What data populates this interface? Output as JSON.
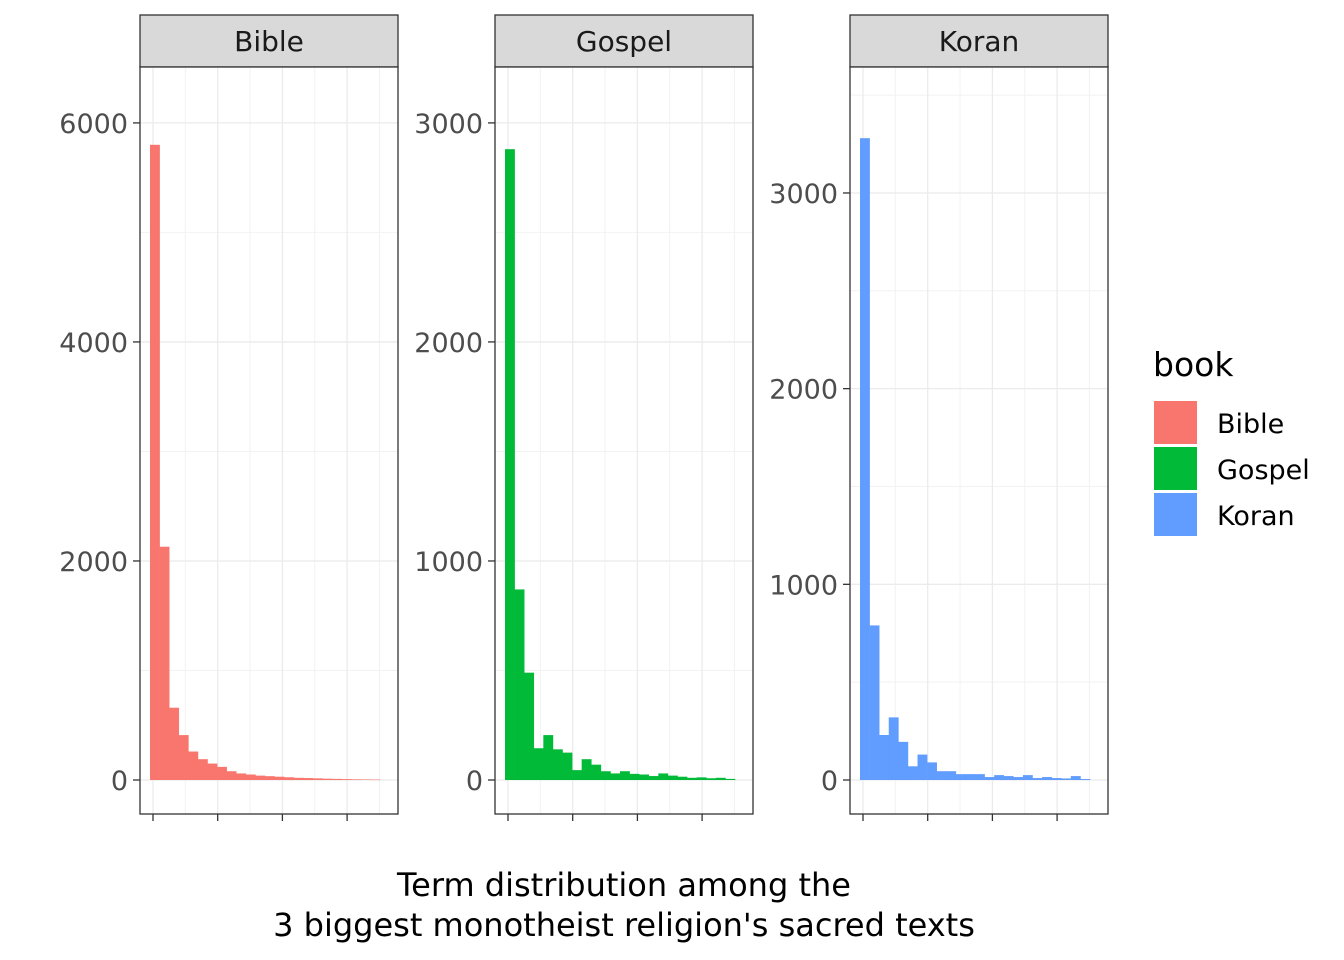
{
  "chart_data": {
    "type": "bar",
    "subtype": "faceted-histogram",
    "facets": [
      {
        "name": "Bible",
        "color": "#F8766D",
        "ylim": [
          0,
          6200
        ],
        "yticks": [
          0,
          2000,
          4000,
          6000
        ],
        "tick_labels": [
          "0",
          "2000",
          "4000",
          "6000"
        ],
        "values": [
          5800,
          2130,
          660,
          410,
          260,
          190,
          150,
          120,
          80,
          60,
          50,
          40,
          35,
          30,
          25,
          20,
          18,
          15,
          12,
          10,
          8,
          6,
          5,
          4
        ]
      },
      {
        "name": "Gospel",
        "color": "#00BA38",
        "ylim": [
          0,
          3100
        ],
        "yticks": [
          0,
          1000,
          2000,
          3000
        ],
        "tick_labels": [
          "0",
          "1000",
          "2000",
          "3000"
        ],
        "values": [
          2880,
          870,
          490,
          145,
          205,
          140,
          125,
          45,
          95,
          70,
          40,
          30,
          40,
          28,
          25,
          18,
          30,
          20,
          15,
          10,
          12,
          8,
          10,
          5
        ]
      },
      {
        "name": "Koran",
        "color": "#619CFF",
        "ylim": [
          0,
          3470
        ],
        "yticks": [
          0,
          1000,
          2000,
          3000
        ],
        "tick_labels": [
          "0",
          "1000",
          "2000",
          "3000"
        ],
        "values": [
          3280,
          790,
          230,
          320,
          195,
          70,
          130,
          90,
          45,
          45,
          30,
          30,
          30,
          15,
          25,
          20,
          15,
          25,
          10,
          15,
          10,
          8,
          20,
          5
        ]
      }
    ],
    "x_tick_count": 4,
    "legend": {
      "title": "book",
      "position": "right",
      "entries": [
        "Bible",
        "Gospel",
        "Koran"
      ]
    },
    "xlabel_lines": [
      "Term distribution among the",
      "3 biggest monotheist religion's sacred texts"
    ],
    "grid": true,
    "theme": "bw"
  }
}
